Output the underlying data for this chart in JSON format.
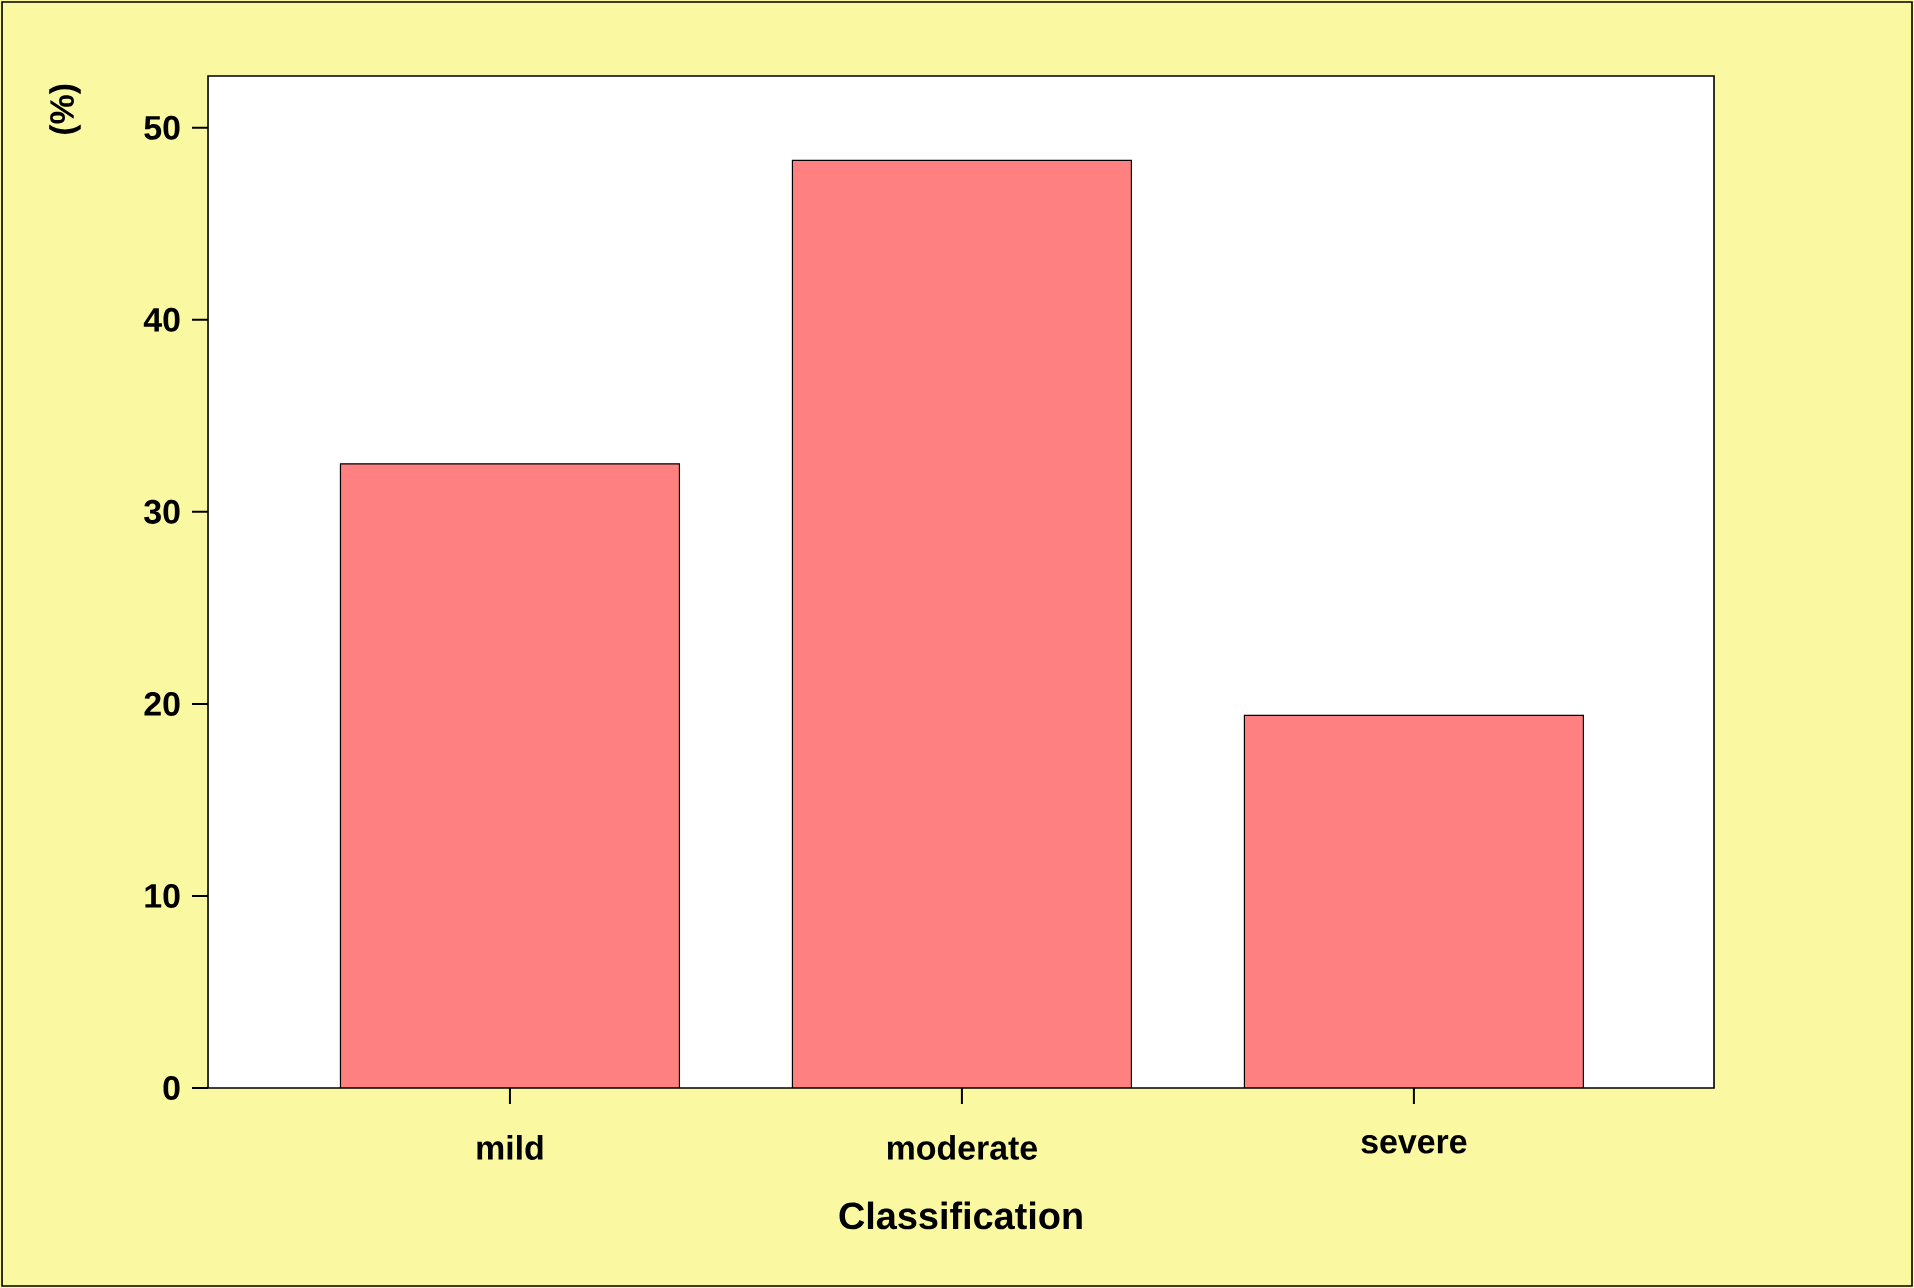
{
  "chart_data": {
    "type": "bar",
    "xlabel": "Classification",
    "ylabel": "(%)",
    "categories": [
      "mild",
      "moderate",
      "severe"
    ],
    "values": [
      32.5,
      48.3,
      19.4
    ],
    "color": "#ff8080",
    "ylim": [
      0,
      52.7
    ],
    "yticks": [
      0,
      10,
      20,
      30,
      40,
      50
    ],
    "grid": false
  }
}
